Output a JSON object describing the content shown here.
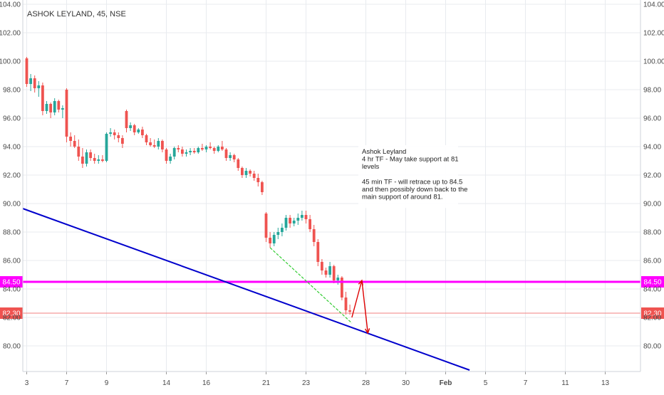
{
  "chart_data": {
    "type": "candlestick",
    "title": "ASHOK LEYLAND, 45, NSE",
    "ylim": [
      78.5,
      104.5
    ],
    "y_ticks": [
      80,
      82,
      84,
      86,
      88,
      90,
      92,
      94,
      96,
      98,
      100,
      102,
      104
    ],
    "y_tick_labels": [
      "80.00",
      "82.00",
      "84.00",
      "86.00",
      "88.00",
      "90.00",
      "92.00",
      "94.00",
      "96.00",
      "98.00",
      "100.00",
      "102.00",
      "104.00"
    ],
    "x_ticks": [
      {
        "label": "3",
        "bar": 0
      },
      {
        "label": "7",
        "bar": 10
      },
      {
        "label": "9",
        "bar": 20
      },
      {
        "label": "14",
        "bar": 35
      },
      {
        "label": "16",
        "bar": 45
      },
      {
        "label": "21",
        "bar": 60
      },
      {
        "label": "23",
        "bar": 70
      },
      {
        "label": "28",
        "bar": 85
      },
      {
        "label": "30",
        "bar": 95
      },
      {
        "label": "Feb",
        "bar": 105
      },
      {
        "label": "5",
        "bar": 115
      },
      {
        "label": "7",
        "bar": 125
      },
      {
        "label": "11",
        "bar": 135
      },
      {
        "label": "13",
        "bar": 145
      }
    ],
    "candles": [
      [
        100.2,
        100.3,
        98.2,
        98.4
      ],
      [
        98.4,
        99.1,
        97.9,
        98.8
      ],
      [
        98.8,
        99.0,
        97.8,
        98.1
      ],
      [
        98.1,
        98.6,
        97.5,
        98.3
      ],
      [
        98.3,
        98.5,
        96.2,
        96.5
      ],
      [
        96.5,
        97.2,
        96.3,
        97.0
      ],
      [
        97.0,
        97.1,
        96.0,
        96.4
      ],
      [
        96.4,
        97.4,
        96.2,
        97.2
      ],
      [
        97.2,
        97.3,
        96.4,
        96.6
      ],
      [
        96.6,
        96.9,
        96.0,
        96.7
      ],
      [
        98.0,
        98.1,
        94.3,
        94.7
      ],
      [
        94.7,
        95.0,
        94.0,
        94.4
      ],
      [
        94.4,
        94.8,
        93.9,
        94.0
      ],
      [
        94.0,
        94.5,
        93.0,
        93.3
      ],
      [
        93.3,
        93.9,
        92.5,
        92.8
      ],
      [
        92.8,
        93.8,
        92.6,
        93.6
      ],
      [
        93.6,
        93.8,
        93.0,
        93.2
      ],
      [
        93.2,
        93.5,
        92.8,
        93.0
      ],
      [
        93.0,
        93.4,
        92.8,
        93.1
      ],
      [
        93.1,
        93.4,
        92.9,
        93.0
      ],
      [
        93.0,
        95.0,
        92.9,
        94.9
      ],
      [
        94.9,
        95.3,
        94.7,
        95.0
      ],
      [
        95.0,
        95.2,
        94.5,
        94.8
      ],
      [
        94.8,
        95.0,
        94.3,
        94.6
      ],
      [
        94.6,
        94.8,
        93.9,
        94.2
      ],
      [
        96.5,
        96.6,
        95.0,
        95.3
      ],
      [
        95.3,
        95.7,
        95.1,
        95.5
      ],
      [
        95.5,
        95.6,
        94.8,
        95.0
      ],
      [
        95.0,
        95.3,
        94.9,
        95.2
      ],
      [
        95.2,
        95.4,
        94.6,
        94.8
      ],
      [
        94.8,
        94.9,
        94.1,
        94.3
      ],
      [
        94.3,
        94.6,
        94.0,
        94.1
      ],
      [
        94.1,
        94.5,
        93.9,
        94.0
      ],
      [
        94.0,
        94.6,
        93.8,
        94.4
      ],
      [
        94.4,
        94.5,
        93.6,
        93.8
      ],
      [
        93.8,
        93.9,
        92.8,
        93.0
      ],
      [
        93.0,
        93.5,
        92.8,
        93.3
      ],
      [
        93.3,
        94.0,
        93.1,
        93.9
      ],
      [
        93.9,
        94.1,
        93.6,
        93.8
      ],
      [
        93.8,
        94.0,
        93.3,
        93.5
      ],
      [
        93.5,
        93.8,
        93.3,
        93.6
      ],
      [
        93.6,
        93.9,
        93.4,
        93.7
      ],
      [
        93.7,
        93.9,
        93.5,
        93.6
      ],
      [
        93.6,
        94.0,
        93.5,
        93.9
      ],
      [
        93.9,
        94.2,
        93.7,
        93.8
      ],
      [
        93.8,
        94.1,
        93.6,
        94.0
      ],
      [
        94.0,
        94.3,
        93.8,
        93.9
      ],
      [
        93.9,
        94.0,
        93.5,
        93.7
      ],
      [
        93.7,
        94.1,
        93.6,
        94.0
      ],
      [
        94.0,
        94.4,
        93.7,
        93.8
      ],
      [
        93.8,
        93.9,
        93.0,
        93.2
      ],
      [
        93.2,
        93.6,
        93.0,
        93.4
      ],
      [
        93.4,
        93.5,
        92.9,
        93.1
      ],
      [
        93.1,
        93.2,
        92.3,
        92.5
      ],
      [
        92.5,
        92.6,
        91.8,
        92.0
      ],
      [
        92.0,
        92.5,
        91.8,
        92.3
      ],
      [
        92.3,
        92.4,
        91.9,
        92.1
      ],
      [
        92.1,
        92.3,
        91.6,
        91.8
      ],
      [
        91.8,
        92.1,
        91.2,
        91.5
      ],
      [
        91.5,
        91.6,
        90.6,
        90.8
      ],
      [
        89.3,
        89.4,
        87.3,
        87.6
      ],
      [
        87.6,
        88.0,
        86.9,
        87.2
      ],
      [
        87.2,
        88.0,
        87.0,
        87.8
      ],
      [
        87.8,
        88.3,
        87.5,
        88.0
      ],
      [
        88.0,
        88.6,
        87.7,
        88.3
      ],
      [
        88.3,
        89.2,
        88.1,
        89.0
      ],
      [
        89.0,
        89.2,
        88.3,
        88.6
      ],
      [
        88.6,
        89.0,
        88.4,
        88.8
      ],
      [
        88.8,
        89.3,
        88.5,
        89.0
      ],
      [
        89.0,
        89.5,
        88.8,
        89.2
      ],
      [
        89.2,
        89.5,
        88.6,
        88.9
      ],
      [
        88.9,
        89.2,
        88.0,
        88.2
      ],
      [
        88.2,
        88.5,
        87.0,
        87.3
      ],
      [
        87.3,
        87.5,
        85.6,
        85.9
      ],
      [
        85.9,
        86.1,
        85.0,
        85.3
      ],
      [
        85.3,
        85.5,
        84.8,
        85.0
      ],
      [
        85.0,
        85.9,
        84.8,
        85.6
      ],
      [
        85.6,
        85.7,
        84.4,
        84.6
      ],
      [
        84.6,
        85.0,
        84.3,
        84.8
      ],
      [
        84.8,
        84.9,
        83.2,
        83.4
      ],
      [
        83.4,
        83.8,
        82.2,
        82.5
      ],
      [
        82.5,
        82.9,
        82.2,
        82.4
      ]
    ],
    "horizontal_lines": [
      {
        "label": "84.50",
        "value": 84.5,
        "color": "#ff00ff"
      },
      {
        "label": "82.30",
        "value": 82.3,
        "color": "#f08080"
      }
    ],
    "trend_lines": [
      {
        "name": "support-trendline",
        "color": "#0000cc",
        "from": {
          "bar": -1,
          "y": 89.65
        },
        "to": {
          "bar": 111,
          "y": 78.3
        }
      },
      {
        "name": "falling-trendline",
        "color": "#33cc33",
        "dashed": true,
        "from": {
          "bar": 61,
          "y": 86.9
        },
        "to": {
          "bar": 81.5,
          "y": 81.6
        }
      }
    ],
    "projection_arrows": [
      {
        "name": "up-arrow",
        "color": "#dd0000",
        "from": {
          "bar": 81.5,
          "y": 82.0
        },
        "to": {
          "bar": 84,
          "y": 84.6
        }
      },
      {
        "name": "down-arrow",
        "color": "#dd0000",
        "from": {
          "bar": 84,
          "y": 84.6
        },
        "to": {
          "bar": 85.5,
          "y": 80.9
        }
      }
    ],
    "annotation_lines": [
      "Ashok Leyland",
      "4 hr TF - May take support at 81",
      "levels",
      "",
      "45 min TF - will retrace up to 84.5",
      "and then possibly down back to the",
      "main support of around 81."
    ],
    "colors": {
      "up": "#26a69a",
      "down": "#ef5350",
      "grid": "#e8ebef",
      "axis_text": "#4a4a4a",
      "title": "#333333"
    }
  }
}
